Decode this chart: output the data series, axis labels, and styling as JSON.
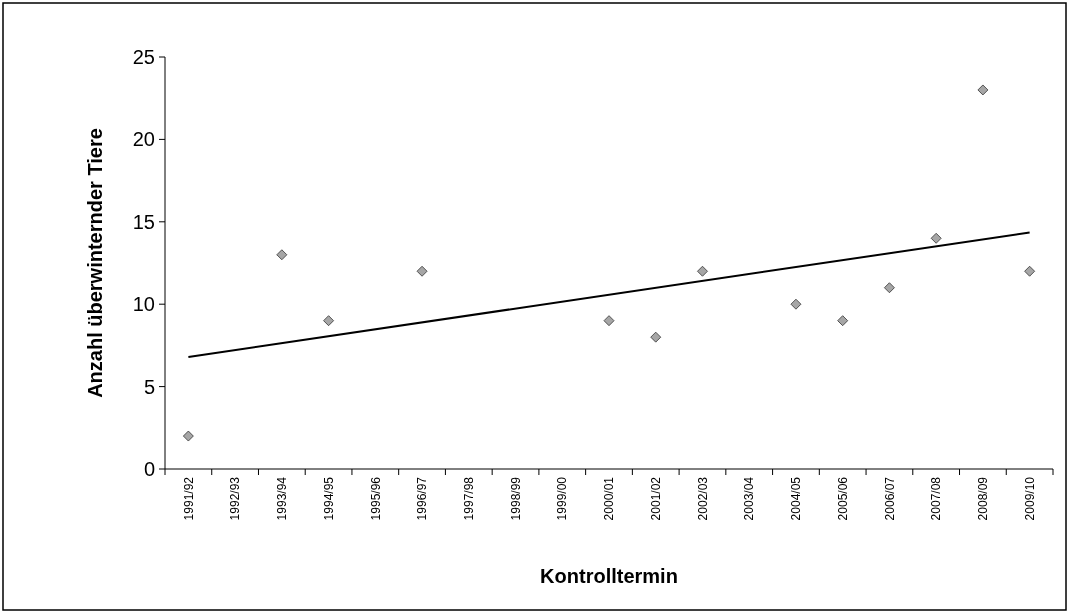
{
  "chart_data": {
    "type": "scatter",
    "xlabel": "Kontrolltermin",
    "ylabel": "Anzahl überwinternder Tiere",
    "categories": [
      "1991/92",
      "1992/93",
      "1993/94",
      "1994/95",
      "1995/96",
      "1996/97",
      "1997/98",
      "1998/99",
      "1999/00",
      "2000/01",
      "2001/02",
      "2002/03",
      "2003/04",
      "2004/05",
      "2005/06",
      "2006/07",
      "2007/08",
      "2008/09",
      "2009/10"
    ],
    "series": [
      {
        "color": "#a6a6a6",
        "marker": "diamond",
        "values": [
          2,
          null,
          13,
          9,
          null,
          12,
          null,
          null,
          null,
          9,
          8,
          12,
          null,
          10,
          9,
          11,
          14,
          23,
          12
        ]
      },
      {
        "type": "line",
        "color": "#000000",
        "marker": "none",
        "line_style": "solid",
        "x": [
          "1991/92",
          "2009/10"
        ],
        "values": [
          6.8,
          14.35
        ]
      }
    ],
    "ylim": [
      0,
      25
    ],
    "yticks": [
      0,
      5,
      10,
      15,
      20,
      25
    ],
    "grid": false
  }
}
